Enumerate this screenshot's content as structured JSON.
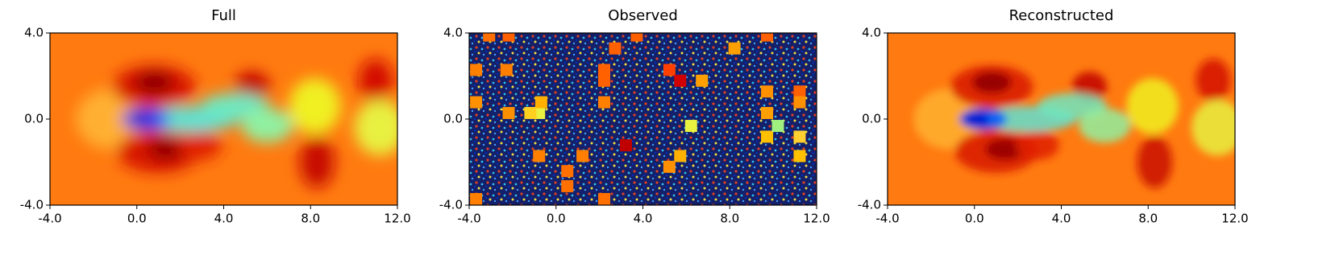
{
  "chart_data": [
    {
      "type": "heatmap",
      "title": "Full",
      "xlim": [
        -4,
        12
      ],
      "ylim": [
        -4,
        4
      ],
      "xticks": [
        {
          "value": -4,
          "label": "-4.0"
        },
        {
          "value": 0,
          "label": "0.0"
        },
        {
          "value": 4,
          "label": "4.0"
        },
        {
          "value": 8,
          "label": "8.0"
        },
        {
          "value": 12,
          "label": "12.0"
        }
      ],
      "yticks": [
        {
          "value": -4,
          "label": "-4.0"
        },
        {
          "value": 0,
          "label": "0.0"
        },
        {
          "value": 4,
          "label": "4.0"
        }
      ]
    },
    {
      "type": "heatmap",
      "title": "Observed",
      "xlim": [
        -4,
        12
      ],
      "ylim": [
        -4,
        4
      ],
      "xticks": [
        {
          "value": -4,
          "label": "-4.0"
        },
        {
          "value": 0,
          "label": "0.0"
        },
        {
          "value": 4,
          "label": "4.0"
        },
        {
          "value": 8,
          "label": "8.0"
        },
        {
          "value": 12,
          "label": "12.0"
        }
      ],
      "yticks": [
        {
          "value": -4,
          "label": "-4.0"
        },
        {
          "value": 0,
          "label": "0.0"
        },
        {
          "value": 4,
          "label": "4.0"
        }
      ]
    },
    {
      "type": "heatmap",
      "title": "Reconstructed",
      "xlim": [
        -4,
        12
      ],
      "ylim": [
        -4,
        4
      ],
      "xticks": [
        {
          "value": -4,
          "label": "-4.0"
        },
        {
          "value": 0,
          "label": "0.0"
        },
        {
          "value": 4,
          "label": "4.0"
        },
        {
          "value": 8,
          "label": "8.0"
        },
        {
          "value": 12,
          "label": "12.0"
        }
      ],
      "yticks": [
        {
          "value": -4,
          "label": "-4.0"
        },
        {
          "value": 0,
          "label": "0.0"
        },
        {
          "value": 4,
          "label": "4.0"
        }
      ]
    }
  ]
}
